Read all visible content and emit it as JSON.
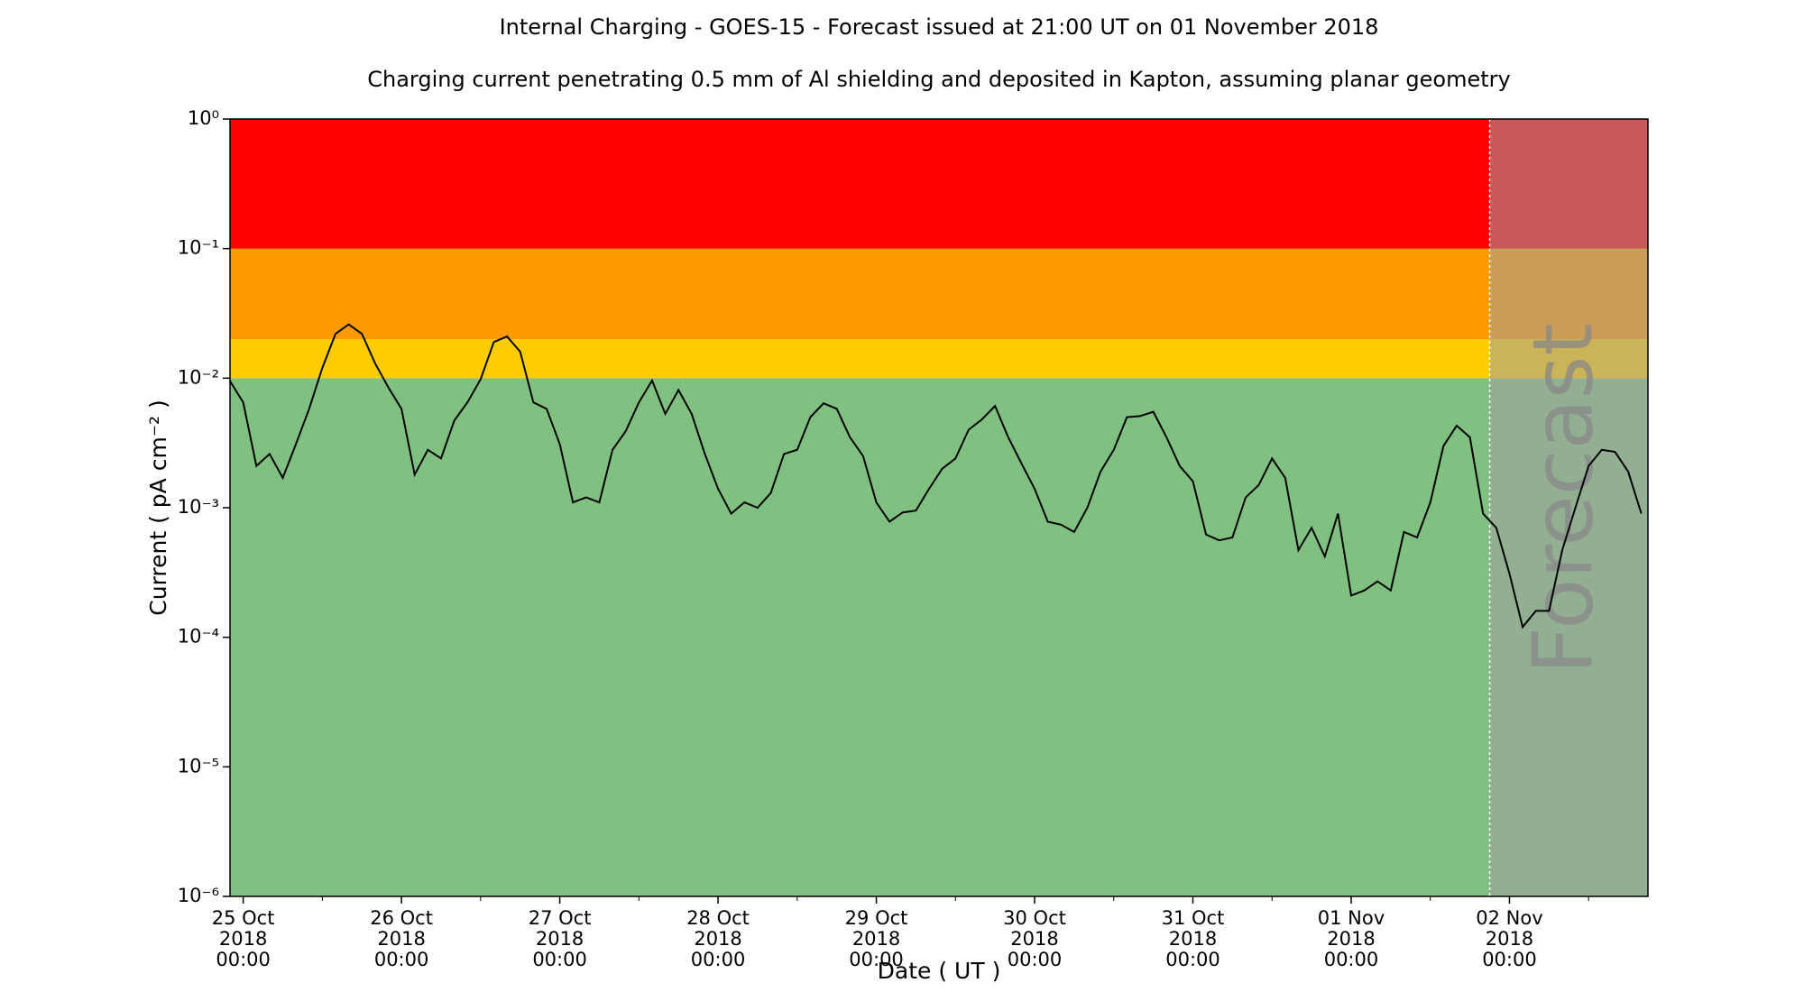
{
  "chart_data": {
    "type": "line",
    "title": "Internal Charging - GOES-15 - Forecast issued at 21:00 UT on 01 November 2018",
    "subtitle": "Charging current penetrating 0.5 mm of Al shielding and deposited in Kapton, assuming planar geometry",
    "x_label": "Date ( UT )",
    "y_label": "Current ( pA cm⁻² )",
    "y_scale": "log",
    "xlim": [
      "2018-10-24 22:00",
      "2018-11-02 21:00"
    ],
    "ylim": [
      1e-06,
      1
    ],
    "yticks": [
      {
        "value": 1e-06,
        "label": "10⁻⁶"
      },
      {
        "value": 1e-05,
        "label": "10⁻⁵"
      },
      {
        "value": 0.0001,
        "label": "10⁻⁴"
      },
      {
        "value": 0.001,
        "label": "10⁻³"
      },
      {
        "value": 0.01,
        "label": "10⁻²"
      },
      {
        "value": 0.1,
        "label": "10⁻¹"
      },
      {
        "value": 1,
        "label": "10⁰"
      }
    ],
    "xticks": [
      {
        "value": "2018-10-25 00:00",
        "label": "25 Oct\n2018\n00:00"
      },
      {
        "value": "2018-10-26 00:00",
        "label": "26 Oct\n2018\n00:00"
      },
      {
        "value": "2018-10-27 00:00",
        "label": "27 Oct\n2018\n00:00"
      },
      {
        "value": "2018-10-28 00:00",
        "label": "28 Oct\n2018\n00:00"
      },
      {
        "value": "2018-10-29 00:00",
        "label": "29 Oct\n2018\n00:00"
      },
      {
        "value": "2018-10-30 00:00",
        "label": "30 Oct\n2018\n00:00"
      },
      {
        "value": "2018-10-31 00:00",
        "label": "31 Oct\n2018\n00:00"
      },
      {
        "value": "2018-11-01 00:00",
        "label": "01 Nov\n2018\n00:00"
      },
      {
        "value": "2018-11-02 00:00",
        "label": "02 Nov\n2018\n00:00"
      }
    ],
    "x_minor_ticks": [
      "2018-10-25 12:00",
      "2018-10-26 12:00",
      "2018-10-27 12:00",
      "2018-10-28 12:00",
      "2018-10-29 12:00",
      "2018-10-30 12:00",
      "2018-10-31 12:00",
      "2018-11-01 12:00",
      "2018-11-02 12:00"
    ],
    "bands": [
      {
        "from": 1e-06,
        "to": 0.01,
        "color": "#80c080"
      },
      {
        "from": 0.01,
        "to": 0.02,
        "color": "#ffcc00"
      },
      {
        "from": 0.02,
        "to": 0.1,
        "color": "#ff9900"
      },
      {
        "from": 0.1,
        "to": 1,
        "color": "#ff0000"
      }
    ],
    "forecast": {
      "start": "2018-11-01 21:00",
      "label": "Forecast",
      "color": "#a0a0a0"
    },
    "x": [
      "2018-10-24 22:00",
      "2018-10-25 00:00",
      "2018-10-25 02:00",
      "2018-10-25 04:00",
      "2018-10-25 06:00",
      "2018-10-25 08:00",
      "2018-10-25 10:00",
      "2018-10-25 12:00",
      "2018-10-25 14:00",
      "2018-10-25 16:00",
      "2018-10-25 18:00",
      "2018-10-25 20:00",
      "2018-10-25 22:00",
      "2018-10-26 00:00",
      "2018-10-26 02:00",
      "2018-10-26 04:00",
      "2018-10-26 06:00",
      "2018-10-26 08:00",
      "2018-10-26 10:00",
      "2018-10-26 12:00",
      "2018-10-26 14:00",
      "2018-10-26 16:00",
      "2018-10-26 18:00",
      "2018-10-26 20:00",
      "2018-10-26 22:00",
      "2018-10-27 00:00",
      "2018-10-27 02:00",
      "2018-10-27 04:00",
      "2018-10-27 06:00",
      "2018-10-27 08:00",
      "2018-10-27 10:00",
      "2018-10-27 12:00",
      "2018-10-27 14:00",
      "2018-10-27 16:00",
      "2018-10-27 18:00",
      "2018-10-27 20:00",
      "2018-10-27 22:00",
      "2018-10-28 00:00",
      "2018-10-28 02:00",
      "2018-10-28 04:00",
      "2018-10-28 06:00",
      "2018-10-28 08:00",
      "2018-10-28 10:00",
      "2018-10-28 12:00",
      "2018-10-28 14:00",
      "2018-10-28 16:00",
      "2018-10-28 18:00",
      "2018-10-28 20:00",
      "2018-10-28 22:00",
      "2018-10-29 00:00",
      "2018-10-29 02:00",
      "2018-10-29 04:00",
      "2018-10-29 06:00",
      "2018-10-29 08:00",
      "2018-10-29 10:00",
      "2018-10-29 12:00",
      "2018-10-29 14:00",
      "2018-10-29 16:00",
      "2018-10-29 18:00",
      "2018-10-29 20:00",
      "2018-10-29 22:00",
      "2018-10-30 00:00",
      "2018-10-30 02:00",
      "2018-10-30 04:00",
      "2018-10-30 06:00",
      "2018-10-30 08:00",
      "2018-10-30 10:00",
      "2018-10-30 12:00",
      "2018-10-30 14:00",
      "2018-10-30 16:00",
      "2018-10-30 18:00",
      "2018-10-30 20:00",
      "2018-10-30 22:00",
      "2018-10-31 00:00",
      "2018-10-31 02:00",
      "2018-10-31 04:00",
      "2018-10-31 06:00",
      "2018-10-31 08:00",
      "2018-10-31 10:00",
      "2018-10-31 12:00",
      "2018-10-31 14:00",
      "2018-10-31 16:00",
      "2018-10-31 18:00",
      "2018-10-31 20:00",
      "2018-10-31 22:00",
      "2018-11-01 00:00",
      "2018-11-01 02:00",
      "2018-11-01 04:00",
      "2018-11-01 06:00",
      "2018-11-01 08:00",
      "2018-11-01 10:00",
      "2018-11-01 12:00",
      "2018-11-01 14:00",
      "2018-11-01 16:00",
      "2018-11-01 18:00",
      "2018-11-01 20:00",
      "2018-11-01 22:00",
      "2018-11-02 00:00",
      "2018-11-02 02:00",
      "2018-11-02 04:00",
      "2018-11-02 06:00",
      "2018-11-02 08:00",
      "2018-11-02 10:00",
      "2018-11-02 12:00",
      "2018-11-02 14:00",
      "2018-11-02 16:00",
      "2018-11-02 18:00",
      "2018-11-02 20:00"
    ],
    "series": [
      {
        "color": "#000000",
        "values": [
          0.0095,
          0.0065,
          0.0021,
          0.0026,
          0.0017,
          0.0031,
          0.0058,
          0.012,
          0.022,
          0.026,
          0.022,
          0.013,
          0.0085,
          0.0058,
          0.0018,
          0.0028,
          0.0024,
          0.0047,
          0.0065,
          0.0098,
          0.019,
          0.021,
          0.016,
          0.0065,
          0.0058,
          0.0031,
          0.0011,
          0.0012,
          0.0011,
          0.0028,
          0.0039,
          0.0065,
          0.0096,
          0.0053,
          0.0081,
          0.0053,
          0.0026,
          0.0014,
          0.0009,
          0.0011,
          0.001,
          0.0013,
          0.0026,
          0.0028,
          0.005,
          0.0064,
          0.0058,
          0.0035,
          0.0025,
          0.0011,
          0.00078,
          0.00092,
          0.00095,
          0.0014,
          0.002,
          0.0024,
          0.004,
          0.0048,
          0.0061,
          0.0035,
          0.0022,
          0.0014,
          0.00078,
          0.00074,
          0.00065,
          0.001,
          0.0019,
          0.0028,
          0.005,
          0.0051,
          0.0055,
          0.0035,
          0.0021,
          0.0016,
          0.00062,
          0.00056,
          0.00059,
          0.0012,
          0.0015,
          0.0024,
          0.0017,
          0.00047,
          0.0007,
          0.00042,
          0.0009,
          0.00021,
          0.00023,
          0.00027,
          0.00023,
          0.00065,
          0.00059,
          0.0011,
          0.003,
          0.0043,
          0.0035,
          0.0009,
          0.0007,
          0.00031,
          0.00012,
          0.00016,
          0.00016,
          0.00047,
          0.001,
          0.0021,
          0.0028,
          0.0027,
          0.0019,
          0.0009
        ]
      }
    ]
  }
}
